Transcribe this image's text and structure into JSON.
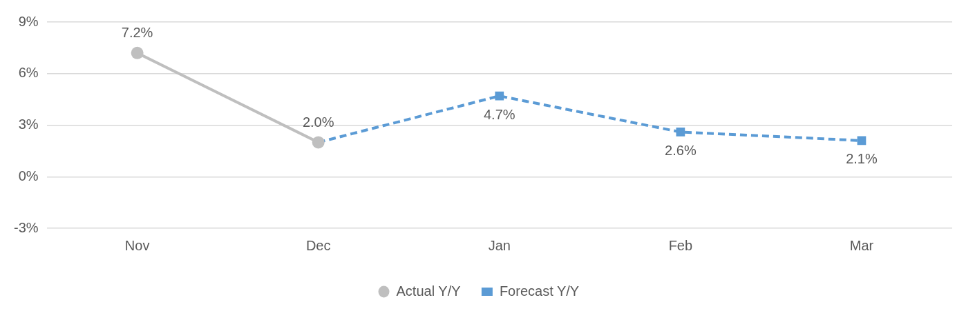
{
  "chart_data": {
    "type": "line",
    "categories": [
      "Nov",
      "Dec",
      "Jan",
      "Feb",
      "Mar"
    ],
    "series": [
      {
        "name": "Actual Y/Y",
        "color": "#bfbfbf",
        "values": [
          7.2,
          2.0,
          null,
          null,
          null
        ],
        "marker": "circle",
        "line_style": "solid",
        "value_labels": [
          "7.2%",
          "2.0%",
          null,
          null,
          null
        ]
      },
      {
        "name": "Forecast Y/Y",
        "color": "#5b9bd5",
        "values": [
          null,
          2.0,
          4.7,
          2.6,
          2.1
        ],
        "marker": "square",
        "line_style": "dashed",
        "value_labels": [
          null,
          null,
          "4.7%",
          "2.6%",
          "2.1%"
        ]
      }
    ],
    "ylim": [
      -3,
      9
    ],
    "yticks": [
      {
        "value": -3,
        "label": "-3%"
      },
      {
        "value": 0,
        "label": "0%"
      },
      {
        "value": 3,
        "label": "3%"
      },
      {
        "value": 6,
        "label": "6%"
      },
      {
        "value": 9,
        "label": "9%"
      }
    ],
    "grid": "y",
    "legend": "bottom"
  }
}
